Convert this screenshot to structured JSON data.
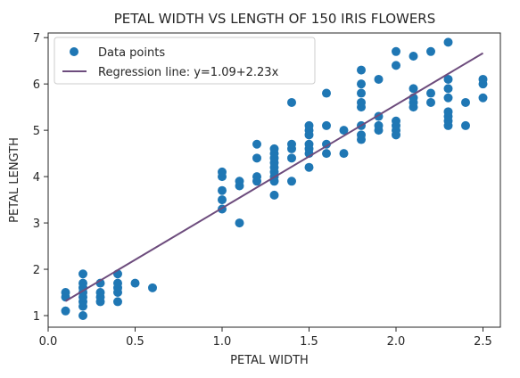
{
  "chart_data": {
    "type": "scatter",
    "title": "PETAL WIDTH VS LENGTH OF 150 IRIS FLOWERS",
    "xlabel": "PETAL WIDTH",
    "ylabel": "PETAL LENGTH",
    "xlim": [
      0.0,
      2.6
    ],
    "ylim": [
      0.75,
      7.1
    ],
    "xticks": [
      0.0,
      0.5,
      1.0,
      1.5,
      2.0,
      2.5
    ],
    "xtick_labels": [
      "0.0",
      "0.5",
      "1.0",
      "1.5",
      "2.0",
      "2.5"
    ],
    "yticks": [
      1,
      2,
      3,
      4,
      5,
      6,
      7
    ],
    "ytick_labels": [
      "1",
      "2",
      "3",
      "4",
      "5",
      "6",
      "7"
    ],
    "grid": false,
    "legend_position": "top-left",
    "series": [
      {
        "name": "Data points",
        "kind": "scatter",
        "color": "#1f77b4",
        "points": [
          [
            0.1,
            1.1
          ],
          [
            0.1,
            1.4
          ],
          [
            0.1,
            1.5
          ],
          [
            0.2,
            1.0
          ],
          [
            0.2,
            1.2
          ],
          [
            0.2,
            1.3
          ],
          [
            0.2,
            1.4
          ],
          [
            0.2,
            1.5
          ],
          [
            0.2,
            1.6
          ],
          [
            0.2,
            1.7
          ],
          [
            0.2,
            1.9
          ],
          [
            0.3,
            1.3
          ],
          [
            0.3,
            1.4
          ],
          [
            0.3,
            1.5
          ],
          [
            0.3,
            1.7
          ],
          [
            0.4,
            1.3
          ],
          [
            0.4,
            1.5
          ],
          [
            0.4,
            1.6
          ],
          [
            0.4,
            1.7
          ],
          [
            0.4,
            1.9
          ],
          [
            0.5,
            1.7
          ],
          [
            0.6,
            1.6
          ],
          [
            1.0,
            3.3
          ],
          [
            1.0,
            3.5
          ],
          [
            1.0,
            3.7
          ],
          [
            1.0,
            4.0
          ],
          [
            1.0,
            4.1
          ],
          [
            1.1,
            3.0
          ],
          [
            1.1,
            3.8
          ],
          [
            1.1,
            3.9
          ],
          [
            1.2,
            3.9
          ],
          [
            1.2,
            4.0
          ],
          [
            1.2,
            4.4
          ],
          [
            1.2,
            4.7
          ],
          [
            1.3,
            3.6
          ],
          [
            1.3,
            3.9
          ],
          [
            1.3,
            4.0
          ],
          [
            1.3,
            4.1
          ],
          [
            1.3,
            4.2
          ],
          [
            1.3,
            4.3
          ],
          [
            1.3,
            4.4
          ],
          [
            1.3,
            4.5
          ],
          [
            1.3,
            4.6
          ],
          [
            1.4,
            3.9
          ],
          [
            1.4,
            4.4
          ],
          [
            1.4,
            4.6
          ],
          [
            1.4,
            4.7
          ],
          [
            1.4,
            5.6
          ],
          [
            1.5,
            4.2
          ],
          [
            1.5,
            4.5
          ],
          [
            1.5,
            4.6
          ],
          [
            1.5,
            4.7
          ],
          [
            1.5,
            4.9
          ],
          [
            1.5,
            5.0
          ],
          [
            1.5,
            5.1
          ],
          [
            1.6,
            4.5
          ],
          [
            1.6,
            4.7
          ],
          [
            1.6,
            5.1
          ],
          [
            1.6,
            5.8
          ],
          [
            1.7,
            4.5
          ],
          [
            1.7,
            5.0
          ],
          [
            1.8,
            4.8
          ],
          [
            1.8,
            4.9
          ],
          [
            1.8,
            5.1
          ],
          [
            1.8,
            5.5
          ],
          [
            1.8,
            5.6
          ],
          [
            1.8,
            5.8
          ],
          [
            1.8,
            6.0
          ],
          [
            1.8,
            6.3
          ],
          [
            1.9,
            5.0
          ],
          [
            1.9,
            5.1
          ],
          [
            1.9,
            5.3
          ],
          [
            1.9,
            6.1
          ],
          [
            2.0,
            4.9
          ],
          [
            2.0,
            5.0
          ],
          [
            2.0,
            5.1
          ],
          [
            2.0,
            5.2
          ],
          [
            2.0,
            6.4
          ],
          [
            2.0,
            6.7
          ],
          [
            2.1,
            5.5
          ],
          [
            2.1,
            5.6
          ],
          [
            2.1,
            5.7
          ],
          [
            2.1,
            5.9
          ],
          [
            2.1,
            6.6
          ],
          [
            2.2,
            5.6
          ],
          [
            2.2,
            5.8
          ],
          [
            2.2,
            6.7
          ],
          [
            2.3,
            5.1
          ],
          [
            2.3,
            5.2
          ],
          [
            2.3,
            5.3
          ],
          [
            2.3,
            5.4
          ],
          [
            2.3,
            5.7
          ],
          [
            2.3,
            5.9
          ],
          [
            2.3,
            6.1
          ],
          [
            2.3,
            6.9
          ],
          [
            2.4,
            5.1
          ],
          [
            2.4,
            5.6
          ],
          [
            2.5,
            5.7
          ],
          [
            2.5,
            6.0
          ],
          [
            2.5,
            6.1
          ]
        ]
      },
      {
        "name": "Regression line: y=1.09+2.23x",
        "kind": "line",
        "color": "#6d4c7d",
        "intercept": 1.09,
        "slope": 2.23,
        "x_range": [
          0.1,
          2.5
        ]
      }
    ]
  }
}
